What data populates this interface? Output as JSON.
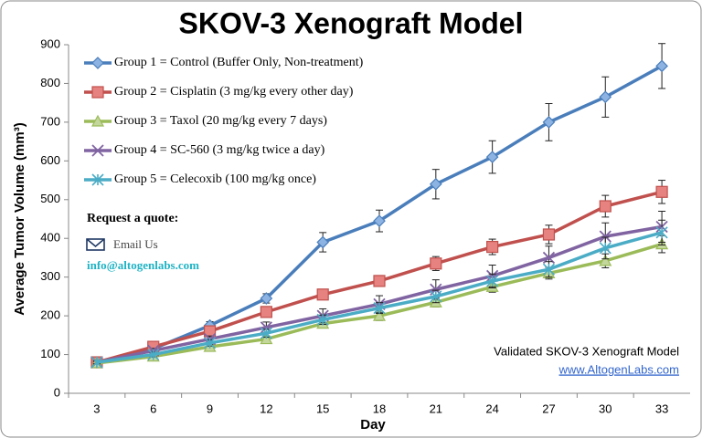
{
  "chart_data": {
    "type": "line",
    "title": "SKOV-3 Xenograft Model",
    "x_label": "Day",
    "y_label": "Average Tumor Volume (mm³)",
    "categories": [
      "3",
      "6",
      "9",
      "12",
      "15",
      "18",
      "21",
      "24",
      "27",
      "30",
      "33"
    ],
    "ylim": [
      0,
      900
    ],
    "yticks": [
      0,
      100,
      200,
      300,
      400,
      500,
      600,
      700,
      800,
      900
    ],
    "legend": "upper left",
    "series": [
      {
        "name": "Group 1 = Control (Buffer Only, Non-treatment)",
        "color": "#4a7ebb",
        "marker": "diamond",
        "values": [
          80,
          115,
          175,
          245,
          390,
          445,
          540,
          610,
          700,
          765,
          845
        ],
        "errors": [
          5,
          8,
          10,
          12,
          25,
          28,
          38,
          42,
          48,
          52,
          58
        ]
      },
      {
        "name": "Group 2 = Cisplatin (3 mg/kg every other day)",
        "color": "#c0504d",
        "marker": "square",
        "values": [
          80,
          120,
          160,
          210,
          255,
          290,
          335,
          378,
          410,
          483,
          520
        ],
        "errors": [
          4,
          6,
          8,
          10,
          12,
          14,
          18,
          20,
          24,
          28,
          30
        ]
      },
      {
        "name": "Group 3 = Taxol (20 mg/kg every 7 days)",
        "color": "#9bbb59",
        "marker": "triangle",
        "values": [
          78,
          95,
          120,
          140,
          180,
          200,
          235,
          275,
          310,
          342,
          385
        ],
        "errors": [
          3,
          5,
          6,
          8,
          10,
          12,
          12,
          14,
          15,
          18,
          22
        ]
      },
      {
        "name": "Group 4 =  SC-560 (3 mg/kg twice a day)",
        "color": "#8064a2",
        "marker": "x",
        "values": [
          80,
          110,
          140,
          170,
          200,
          230,
          268,
          303,
          350,
          405,
          430
        ],
        "errors": [
          4,
          6,
          8,
          14,
          18,
          22,
          25,
          28,
          30,
          35,
          40
        ]
      },
      {
        "name": "Group 5 = Celecoxib (100 mg/kg once)",
        "color": "#4bacc6",
        "marker": "star",
        "values": [
          80,
          100,
          130,
          155,
          190,
          220,
          250,
          290,
          320,
          375,
          415
        ],
        "errors": [
          4,
          6,
          8,
          10,
          12,
          14,
          16,
          18,
          20,
          28,
          32
        ]
      }
    ],
    "annotations": {
      "quote": "Request a quote:",
      "email_label": "Email Us",
      "email": "info@altogenlabs.com",
      "footer": "Validated SKOV-3 Xenograft Model",
      "website": "www.AltogenLabs.com"
    }
  }
}
